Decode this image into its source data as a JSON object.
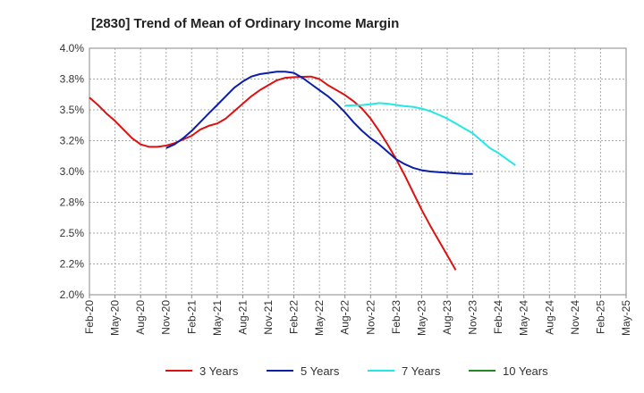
{
  "chart_data": {
    "type": "line",
    "title": "[2830]  Trend of Mean of Ordinary Income Margin",
    "xlabel": "",
    "ylabel": "",
    "x_tick_labels": [
      "Feb-20",
      "May-20",
      "Aug-20",
      "Nov-20",
      "Feb-21",
      "May-21",
      "Aug-21",
      "Nov-21",
      "Feb-22",
      "May-22",
      "Aug-22",
      "Nov-22",
      "Feb-23",
      "May-23",
      "Aug-23",
      "Nov-23",
      "Feb-24",
      "May-24",
      "Aug-24",
      "Nov-24",
      "Feb-25",
      "May-25"
    ],
    "y_tick_labels": [
      "4.0%",
      "3.8%",
      "3.5%",
      "3.2%",
      "3.0%",
      "2.8%",
      "2.5%",
      "2.2%",
      "2.0%"
    ],
    "ylim": [
      2.0,
      4.0
    ],
    "grid": true,
    "legend_position": "bottom",
    "series": [
      {
        "name": "3 Years",
        "color": "#dd1111",
        "start_index": 0,
        "values": [
          3.6,
          3.54,
          3.47,
          3.41,
          3.34,
          3.27,
          3.22,
          3.2,
          3.2,
          3.21,
          3.23,
          3.26,
          3.29,
          3.34,
          3.37,
          3.39,
          3.43,
          3.49,
          3.55,
          3.61,
          3.66,
          3.7,
          3.74,
          3.76,
          3.765,
          3.768,
          3.77,
          3.75,
          3.7,
          3.66,
          3.62,
          3.57,
          3.51,
          3.43,
          3.33,
          3.22,
          3.1,
          2.97,
          2.83,
          2.69,
          2.56,
          2.44,
          2.32,
          2.2
        ]
      },
      {
        "name": "5 Years",
        "color": "#0a1eaa",
        "start_index": 9,
        "values": [
          3.19,
          3.22,
          3.27,
          3.33,
          3.4,
          3.47,
          3.54,
          3.61,
          3.68,
          3.73,
          3.77,
          3.79,
          3.8,
          3.81,
          3.81,
          3.8,
          3.76,
          3.71,
          3.66,
          3.61,
          3.55,
          3.48,
          3.4,
          3.33,
          3.27,
          3.22,
          3.16,
          3.1,
          3.06,
          3.03,
          3.01,
          3.0,
          2.995,
          2.99,
          2.985,
          2.98,
          2.98
        ]
      },
      {
        "name": "7 Years",
        "color": "#22e8e8",
        "start_index": 30,
        "values": [
          3.535,
          3.537,
          3.539,
          3.545,
          3.555,
          3.55,
          3.54,
          3.53,
          3.525,
          3.51,
          3.49,
          3.46,
          3.43,
          3.39,
          3.35,
          3.31,
          3.25,
          3.19,
          3.15,
          3.1,
          3.05
        ]
      },
      {
        "name": "10 Years",
        "color": "#228822",
        "start_index": 0,
        "values": []
      }
    ]
  }
}
